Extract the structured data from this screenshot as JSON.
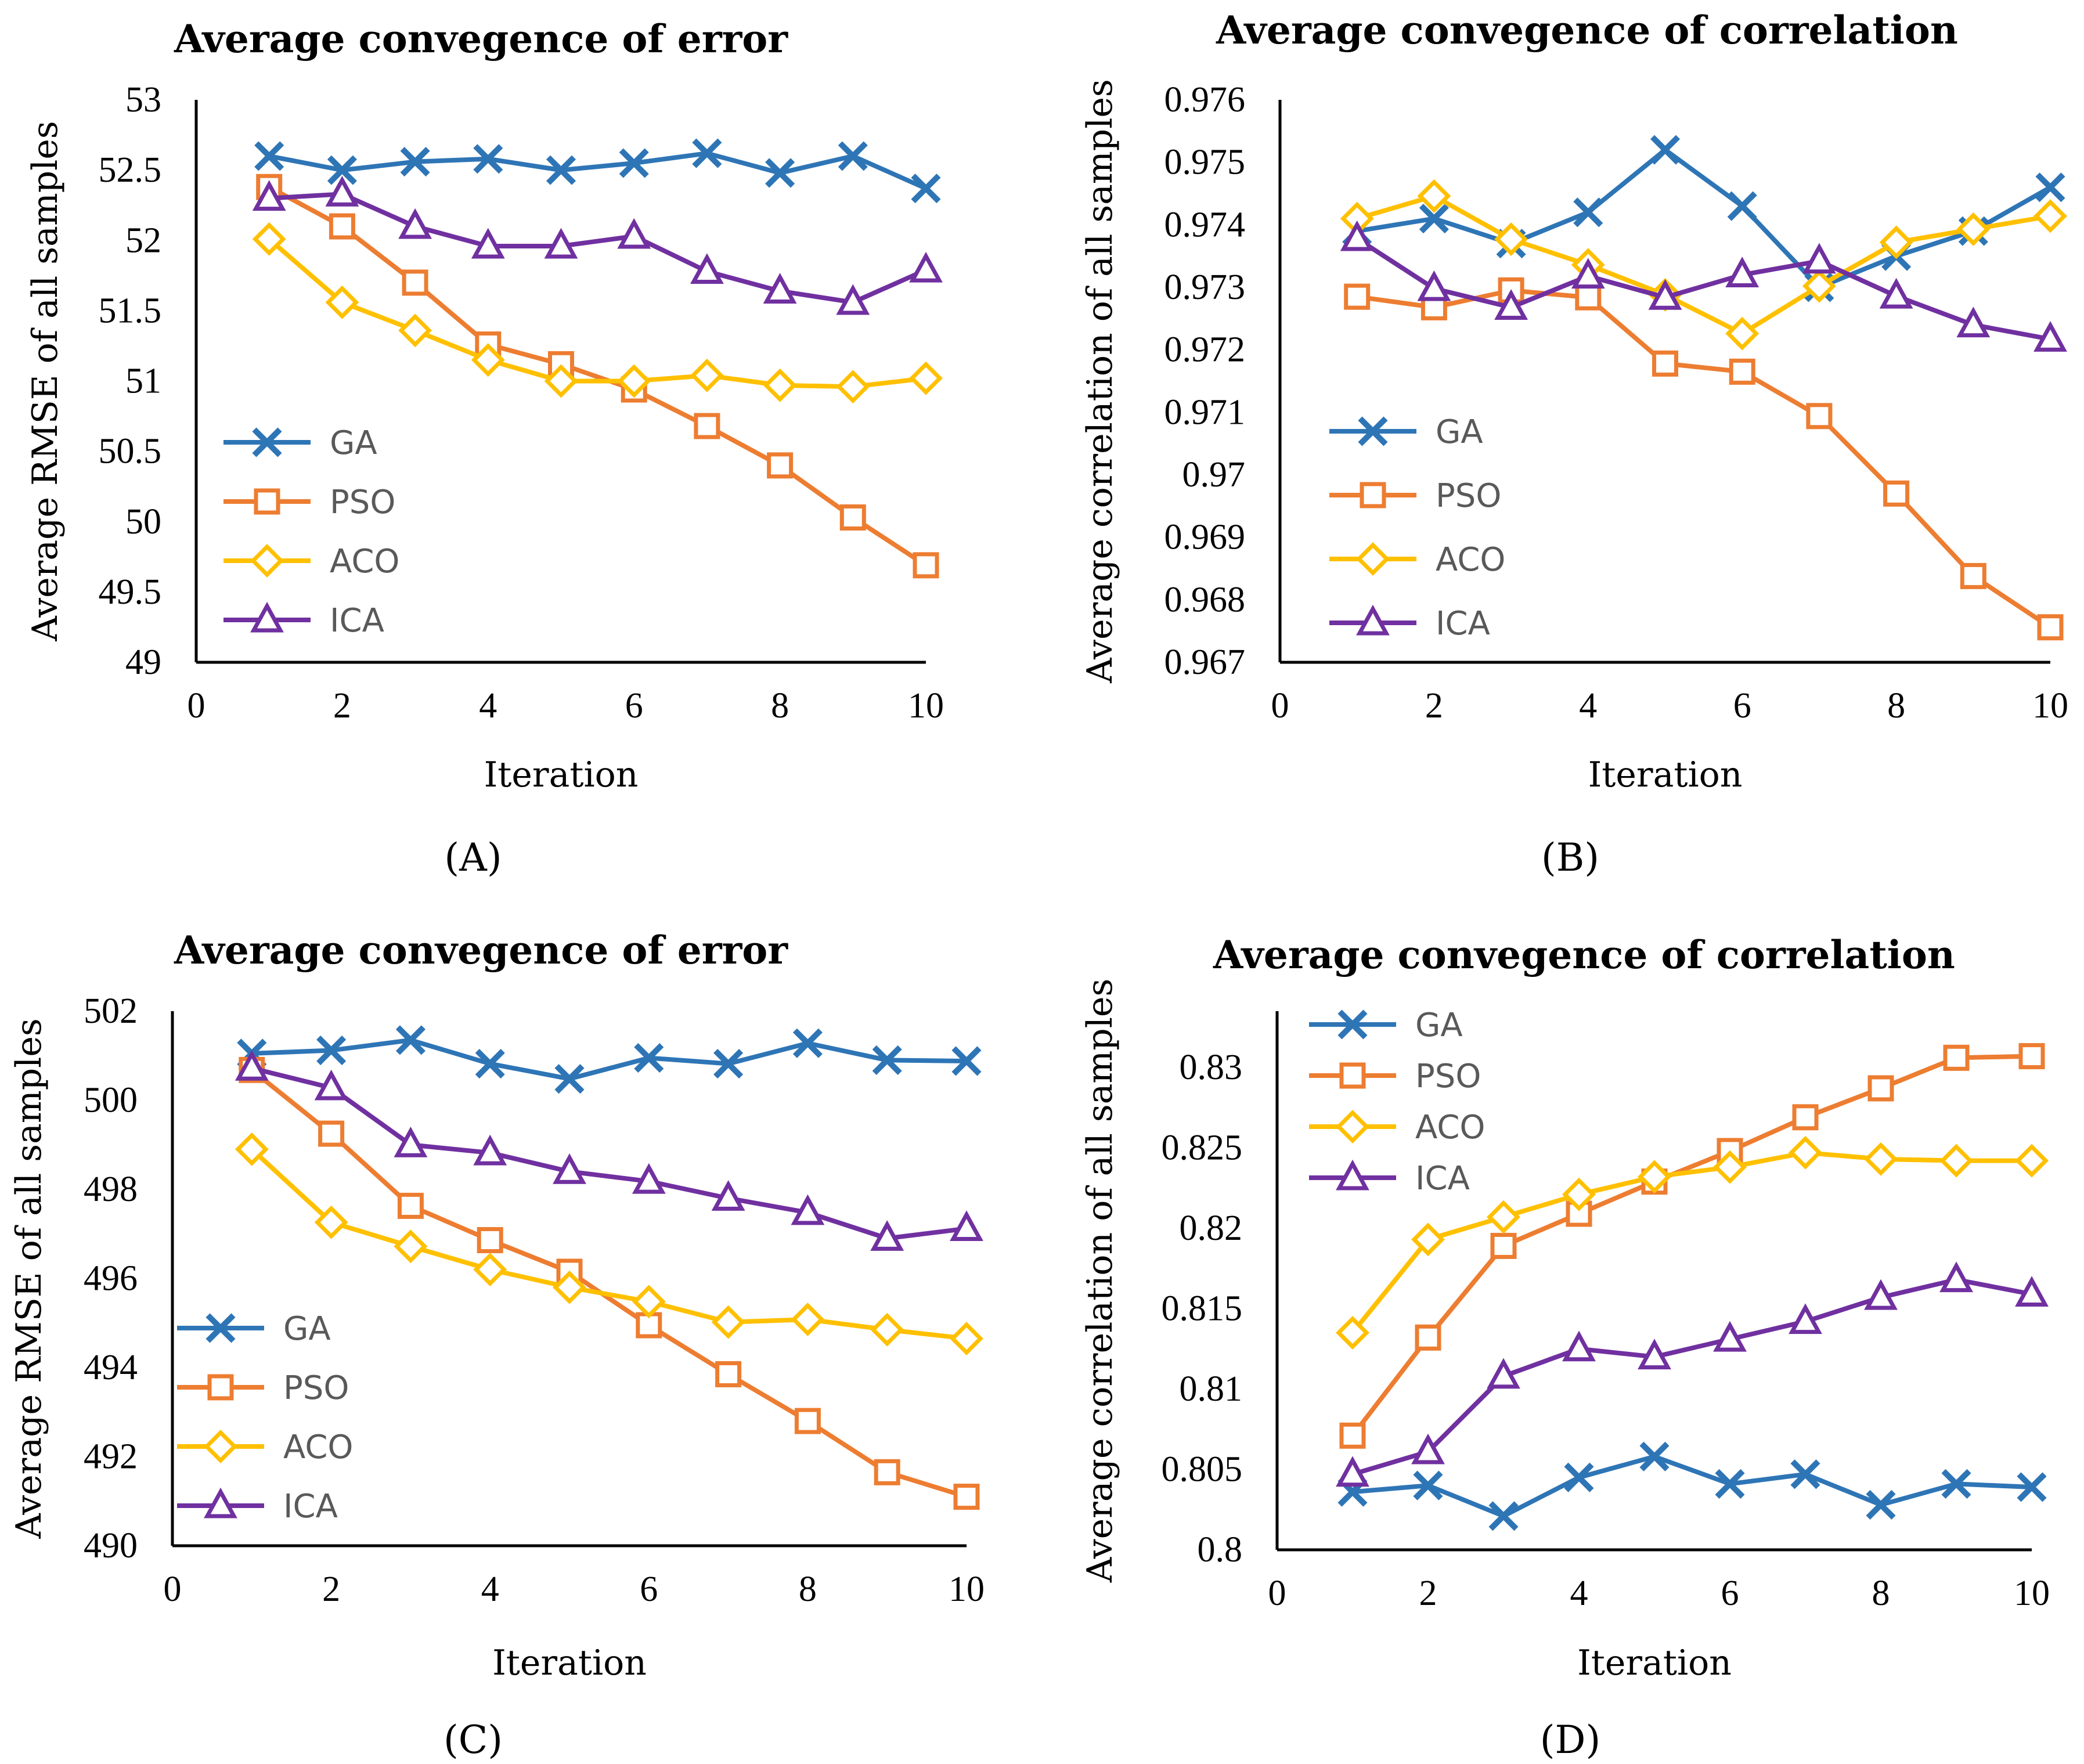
{
  "colors": {
    "GA": "#2E75B6",
    "PSO": "#ED7D31",
    "ACO": "#FFC000",
    "ICA": "#7030A0"
  },
  "chart_data": [
    {
      "type": "line",
      "title": "Average convegence of error",
      "xlabel": "Iteration",
      "ylabel": "Average RMSE of all samples",
      "panel_label": "(A)",
      "xlim": [
        0,
        10
      ],
      "ylim": [
        49,
        53
      ],
      "xticks": [
        "0",
        "2",
        "4",
        "6",
        "8",
        "10"
      ],
      "yticks": [
        "49",
        "49.5",
        "50",
        "50.5",
        "51",
        "51.5",
        "52",
        "52.5",
        "53"
      ],
      "legend_position": "bottom-left",
      "x": [
        1,
        2,
        3,
        4,
        5,
        6,
        7,
        8,
        9,
        10
      ],
      "series": [
        {
          "name": "GA",
          "marker": "x",
          "values": [
            52.6,
            52.5,
            52.56,
            52.58,
            52.5,
            52.55,
            52.62,
            52.48,
            52.6,
            52.37
          ]
        },
        {
          "name": "PSO",
          "marker": "square",
          "values": [
            52.38,
            52.1,
            51.7,
            51.26,
            51.12,
            50.94,
            50.68,
            50.4,
            50.03,
            49.69
          ]
        },
        {
          "name": "ACO",
          "marker": "diamond",
          "values": [
            52.01,
            51.56,
            51.36,
            51.15,
            51.0,
            51.0,
            51.04,
            50.97,
            50.96,
            51.02
          ]
        },
        {
          "name": "ICA",
          "marker": "triangle",
          "values": [
            52.3,
            52.33,
            52.1,
            51.96,
            51.96,
            52.03,
            51.78,
            51.64,
            51.56,
            51.79
          ]
        }
      ]
    },
    {
      "type": "line",
      "title": "Average convegence of correlation",
      "xlabel": "Iteration",
      "ylabel": "Average correlation of all samples",
      "panel_label": "(B)",
      "xlim": [
        0,
        10
      ],
      "ylim": [
        0.967,
        0.976
      ],
      "xticks": [
        "0",
        "2",
        "4",
        "6",
        "8",
        "10"
      ],
      "yticks": [
        "0.967",
        "0.968",
        "0.969",
        "0.97",
        "0.971",
        "0.972",
        "0.973",
        "0.974",
        "0.975",
        "0.976"
      ],
      "legend_position": "bottom-left",
      "x": [
        1,
        2,
        3,
        4,
        5,
        6,
        7,
        8,
        9,
        10
      ],
      "series": [
        {
          "name": "GA",
          "marker": "x",
          "values": [
            0.9739,
            0.9741,
            0.9737,
            0.9742,
            0.9752,
            0.9743,
            0.973,
            0.9735,
            0.9739,
            0.9746
          ]
        },
        {
          "name": "PSO",
          "marker": "square",
          "values": [
            0.97285,
            0.97268,
            0.97295,
            0.97284,
            0.97178,
            0.97165,
            0.97094,
            0.9697,
            0.96838,
            0.96756
          ]
        },
        {
          "name": "ACO",
          "marker": "diamond",
          "values": [
            0.9741,
            0.97446,
            0.97377,
            0.97336,
            0.97288,
            0.97226,
            0.97302,
            0.97372,
            0.97393,
            0.97414
          ]
        },
        {
          "name": "ICA",
          "marker": "triangle",
          "values": [
            0.97378,
            0.97298,
            0.97268,
            0.97318,
            0.97284,
            0.9732,
            0.97342,
            0.97286,
            0.9724,
            0.97217
          ]
        }
      ]
    },
    {
      "type": "line",
      "title": "Average convegence of error",
      "xlabel": "Iteration",
      "ylabel": "Average RMSE of all samples",
      "panel_label": "(C)",
      "xlim": [
        0,
        10
      ],
      "ylim": [
        490,
        502
      ],
      "xticks": [
        "0",
        "2",
        "4",
        "6",
        "8",
        "10"
      ],
      "yticks": [
        "490",
        "492",
        "494",
        "496",
        "498",
        "500",
        "502"
      ],
      "legend_position": "bottom-left",
      "x": [
        1,
        2,
        3,
        4,
        5,
        6,
        7,
        8,
        9,
        10
      ],
      "series": [
        {
          "name": "GA",
          "marker": "x",
          "values": [
            501.05,
            501.12,
            501.35,
            500.82,
            500.48,
            500.95,
            500.82,
            501.28,
            500.9,
            500.88
          ]
        },
        {
          "name": "PSO",
          "marker": "square",
          "values": [
            500.68,
            499.25,
            497.63,
            496.86,
            496.15,
            494.95,
            493.85,
            492.8,
            491.65,
            491.1
          ]
        },
        {
          "name": "ACO",
          "marker": "diamond",
          "values": [
            498.9,
            497.26,
            496.72,
            496.2,
            495.8,
            495.48,
            495.02,
            495.08,
            494.85,
            494.65
          ]
        },
        {
          "name": "ICA",
          "marker": "triangle",
          "values": [
            500.72,
            500.28,
            499.0,
            498.82,
            498.4,
            498.18,
            497.8,
            497.48,
            496.9,
            497.12
          ]
        }
      ]
    },
    {
      "type": "line",
      "title": "Average convegence of correlation",
      "xlabel": "Iteration",
      "ylabel": "Average correlation of all samples",
      "panel_label": "(D)",
      "xlim": [
        0,
        10
      ],
      "ylim": [
        0.8,
        0.8335
      ],
      "xticks": [
        "0",
        "2",
        "4",
        "6",
        "8",
        "10"
      ],
      "yticks": [
        "0.8",
        "0.805",
        "0.81",
        "0.815",
        "0.82",
        "0.825",
        "0.83"
      ],
      "legend_position": "top-left",
      "x": [
        1,
        2,
        3,
        4,
        5,
        6,
        7,
        8,
        9,
        10
      ],
      "series": [
        {
          "name": "GA",
          "marker": "x",
          "values": [
            0.8036,
            0.804,
            0.8021,
            0.8045,
            0.8058,
            0.8041,
            0.8047,
            0.8028,
            0.8041,
            0.8039
          ]
        },
        {
          "name": "PSO",
          "marker": "square",
          "values": [
            0.8071,
            0.8132,
            0.8189,
            0.8209,
            0.8229,
            0.8248,
            0.8269,
            0.8287,
            0.8306,
            0.8307
          ]
        },
        {
          "name": "ACO",
          "marker": "diamond",
          "values": [
            0.8135,
            0.8193,
            0.8207,
            0.8221,
            0.8232,
            0.8238,
            0.8247,
            0.8243,
            0.8242,
            0.8242
          ]
        },
        {
          "name": "ICA",
          "marker": "triangle",
          "values": [
            0.8047,
            0.8061,
            0.8108,
            0.8125,
            0.812,
            0.8131,
            0.8142,
            0.8157,
            0.8168,
            0.8159
          ]
        }
      ]
    }
  ]
}
